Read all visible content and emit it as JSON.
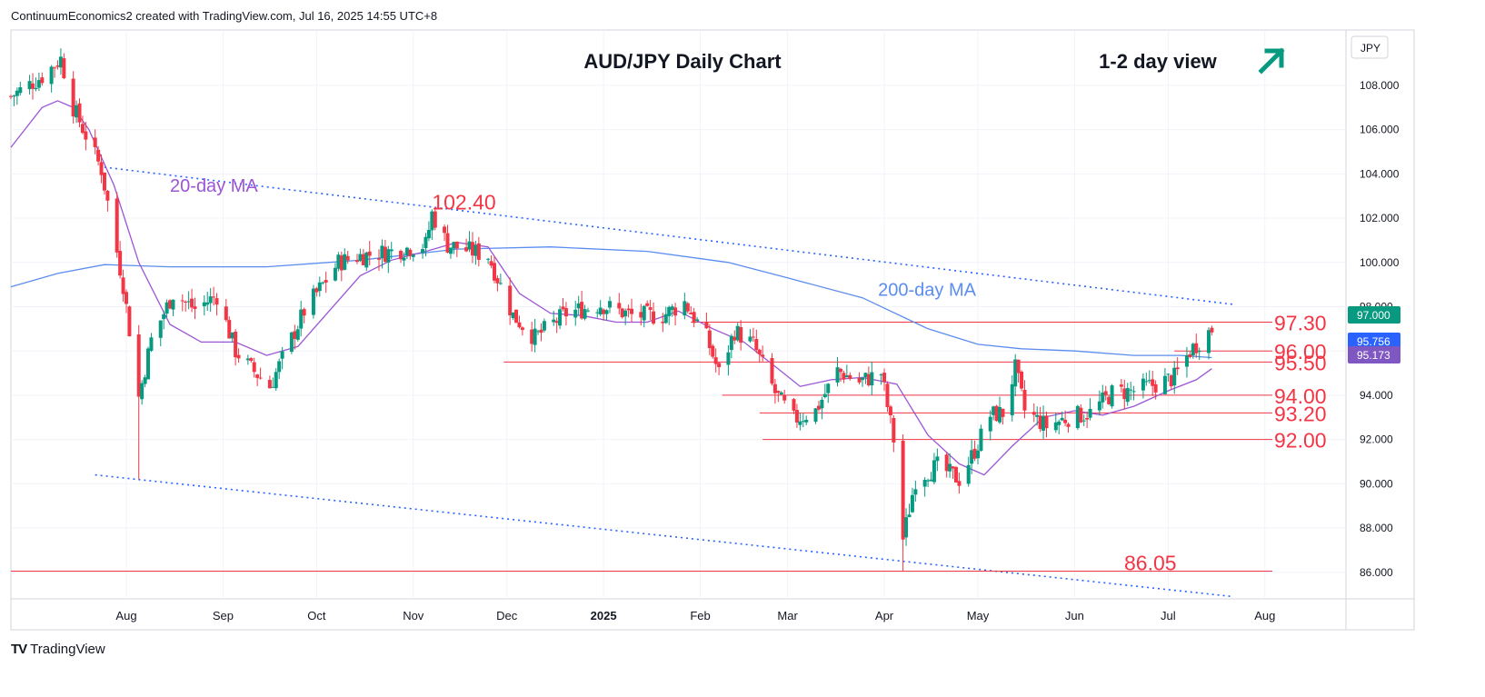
{
  "header": {
    "text": "ContinuumEconomics2 created with TradingView.com, Jul 16, 2025 14:55 UTC+8"
  },
  "footer": {
    "brand": "TradingView",
    "logo": "TV"
  },
  "chart_data": {
    "type": "candlestick",
    "title": "AUD/JPY Daily Chart",
    "view_label": "1-2 day view",
    "view_icon": "arrow-up-right-icon",
    "currency": "JPY",
    "ylim": [
      84.8,
      110.5
    ],
    "y_ticks": [
      "108.000",
      "106.000",
      "104.000",
      "102.000",
      "100.000",
      "98.000",
      "96.000",
      "94.000",
      "92.000",
      "90.000",
      "88.000",
      "86.000"
    ],
    "x_ticks": [
      {
        "label": "Aug",
        "date": "2024-08-01"
      },
      {
        "label": "Sep",
        "date": "2024-09-01"
      },
      {
        "label": "Oct",
        "date": "2024-10-01"
      },
      {
        "label": "Nov",
        "date": "2024-11-01"
      },
      {
        "label": "Dec",
        "date": "2024-12-01"
      },
      {
        "label": "2025",
        "date": "2025-01-01",
        "bold": true
      },
      {
        "label": "Feb",
        "date": "2025-02-01"
      },
      {
        "label": "Mar",
        "date": "2025-03-01"
      },
      {
        "label": "Apr",
        "date": "2025-04-01"
      },
      {
        "label": "May",
        "date": "2025-05-01"
      },
      {
        "label": "Jun",
        "date": "2025-06-01"
      },
      {
        "label": "Jul",
        "date": "2025-07-01"
      },
      {
        "label": "Aug",
        "date": "2025-08-01"
      }
    ],
    "colors": {
      "up": "#089981",
      "down": "#f23645",
      "ma20": "#9c55d4",
      "ma200": "#5b8def",
      "level": "#f23645",
      "trend": "#2962ff",
      "accent": "#089981"
    },
    "price_badges": [
      {
        "value": "97.000",
        "color": "#089981"
      },
      {
        "value": "95.756",
        "color": "#2962ff"
      },
      {
        "value": "95.173",
        "color": "#7e57c2"
      }
    ],
    "levels": [
      {
        "value": 97.3,
        "label": "97.30",
        "from": "2025-01-29"
      },
      {
        "value": 96.0,
        "label": "96.00",
        "from": "2025-07-03"
      },
      {
        "value": 95.5,
        "label": "95.50",
        "from": "2024-11-30"
      },
      {
        "value": 94.0,
        "label": "94.00",
        "from": "2025-02-08"
      },
      {
        "value": 93.2,
        "label": "93.20",
        "from": "2025-02-20"
      },
      {
        "value": 92.0,
        "label": "92.00",
        "from": "2025-02-21"
      },
      {
        "value": 86.05,
        "label": "86.05",
        "from": "2024-06-25"
      }
    ],
    "annotations": [
      {
        "text": "102.40",
        "date": "2024-11-07",
        "value": 102.4,
        "color": "#f23645"
      },
      {
        "text": "20-day MA",
        "date": "2024-08-15",
        "value": 103.2,
        "color": "#9c55d4"
      },
      {
        "text": "200-day MA",
        "date": "2025-03-30",
        "value": 98.5,
        "color": "#5b8def"
      }
    ],
    "trendlines": [
      {
        "name": "upper",
        "points": [
          [
            "2024-07-25",
            104.3
          ],
          [
            "2025-07-22",
            98.1
          ]
        ]
      },
      {
        "name": "lower",
        "points": [
          [
            "2024-07-22",
            90.4
          ],
          [
            "2025-07-22",
            84.9
          ]
        ]
      }
    ],
    "ma20": [
      [
        "2024-06-25",
        105.2
      ],
      [
        "2024-07-05",
        107.0
      ],
      [
        "2024-07-10",
        107.3
      ],
      [
        "2024-07-15",
        107.0
      ],
      [
        "2024-07-20",
        106.0
      ],
      [
        "2024-07-28",
        103.5
      ],
      [
        "2024-08-05",
        100.0
      ],
      [
        "2024-08-15",
        97.2
      ],
      [
        "2024-08-25",
        96.4
      ],
      [
        "2024-09-05",
        96.4
      ],
      [
        "2024-09-15",
        95.8
      ],
      [
        "2024-09-25",
        96.2
      ],
      [
        "2024-10-05",
        97.8
      ],
      [
        "2024-10-15",
        99.4
      ],
      [
        "2024-10-25",
        100.1
      ],
      [
        "2024-11-05",
        100.5
      ],
      [
        "2024-11-15",
        100.9
      ],
      [
        "2024-11-25",
        100.7
      ],
      [
        "2024-12-05",
        98.6
      ],
      [
        "2024-12-15",
        97.7
      ],
      [
        "2024-12-25",
        97.6
      ],
      [
        "2025-01-05",
        97.3
      ],
      [
        "2025-01-15",
        97.3
      ],
      [
        "2025-01-25",
        97.8
      ],
      [
        "2025-02-05",
        97.0
      ],
      [
        "2025-02-15",
        96.4
      ],
      [
        "2025-02-25",
        95.3
      ],
      [
        "2025-03-05",
        94.4
      ],
      [
        "2025-03-15",
        94.7
      ],
      [
        "2025-03-25",
        94.8
      ],
      [
        "2025-04-05",
        94.5
      ],
      [
        "2025-04-15",
        92.2
      ],
      [
        "2025-04-25",
        90.9
      ],
      [
        "2025-05-03",
        90.4
      ],
      [
        "2025-05-12",
        91.7
      ],
      [
        "2025-05-22",
        93.0
      ],
      [
        "2025-06-01",
        93.3
      ],
      [
        "2025-06-10",
        93.1
      ],
      [
        "2025-06-20",
        93.5
      ],
      [
        "2025-07-01",
        94.2
      ],
      [
        "2025-07-10",
        94.7
      ],
      [
        "2025-07-15",
        95.2
      ]
    ],
    "ma200": [
      [
        "2024-06-25",
        98.9
      ],
      [
        "2024-07-10",
        99.5
      ],
      [
        "2024-07-25",
        99.9
      ],
      [
        "2024-08-15",
        99.8
      ],
      [
        "2024-09-15",
        99.8
      ],
      [
        "2024-10-15",
        100.1
      ],
      [
        "2024-11-15",
        100.6
      ],
      [
        "2024-12-15",
        100.7
      ],
      [
        "2025-01-15",
        100.5
      ],
      [
        "2025-02-10",
        100.0
      ],
      [
        "2025-03-01",
        99.3
      ],
      [
        "2025-03-25",
        98.4
      ],
      [
        "2025-04-15",
        97.0
      ],
      [
        "2025-05-01",
        96.3
      ],
      [
        "2025-05-15",
        96.1
      ],
      [
        "2025-06-01",
        96.0
      ],
      [
        "2025-06-20",
        95.8
      ],
      [
        "2025-07-05",
        95.8
      ],
      [
        "2025-07-15",
        95.7
      ]
    ],
    "anchors": [
      [
        "2024-06-25",
        107.5
      ],
      [
        "2024-07-05",
        108.4
      ],
      [
        "2024-07-11",
        109.2
      ],
      [
        "2024-07-15",
        107.0
      ],
      [
        "2024-07-24",
        104.2
      ],
      [
        "2024-07-31",
        99.0
      ],
      [
        "2024-08-05",
        93.9
      ],
      [
        "2024-08-09",
        96.5
      ],
      [
        "2024-08-16",
        98.6
      ],
      [
        "2024-08-23",
        97.9
      ],
      [
        "2024-08-30",
        98.5
      ],
      [
        "2024-09-05",
        96.0
      ],
      [
        "2024-09-10",
        95.2
      ],
      [
        "2024-09-16",
        94.4
      ],
      [
        "2024-09-27",
        97.8
      ],
      [
        "2024-10-08",
        100.0
      ],
      [
        "2024-10-15",
        100.3
      ],
      [
        "2024-10-25",
        100.5
      ],
      [
        "2024-11-05",
        100.8
      ],
      [
        "2024-11-07",
        102.2
      ],
      [
        "2024-11-12",
        100.8
      ],
      [
        "2024-11-25",
        100.3
      ],
      [
        "2024-12-03",
        97.6
      ],
      [
        "2024-12-10",
        96.6
      ],
      [
        "2024-12-20",
        97.7
      ],
      [
        "2024-12-31",
        98.1
      ],
      [
        "2025-01-10",
        97.6
      ],
      [
        "2025-01-20",
        97.6
      ],
      [
        "2025-01-27",
        98.2
      ],
      [
        "2025-02-03",
        96.6
      ],
      [
        "2025-02-07",
        95.0
      ],
      [
        "2025-02-12",
        96.9
      ],
      [
        "2025-02-18",
        96.3
      ],
      [
        "2025-02-25",
        94.1
      ],
      [
        "2025-03-03",
        92.9
      ],
      [
        "2025-03-10",
        93.3
      ],
      [
        "2025-03-17",
        95.1
      ],
      [
        "2025-03-24",
        94.6
      ],
      [
        "2025-03-31",
        95.0
      ],
      [
        "2025-04-04",
        92.0
      ],
      [
        "2025-04-07",
        87.5
      ],
      [
        "2025-04-11",
        90.2
      ],
      [
        "2025-04-18",
        90.8
      ],
      [
        "2025-04-25",
        90.2
      ],
      [
        "2025-04-30",
        91.5
      ],
      [
        "2025-05-05",
        93.1
      ],
      [
        "2025-05-09",
        93.2
      ],
      [
        "2025-05-13",
        95.2
      ],
      [
        "2025-05-16",
        93.3
      ],
      [
        "2025-05-23",
        92.6
      ],
      [
        "2025-05-30",
        93.0
      ],
      [
        "2025-06-06",
        93.2
      ],
      [
        "2025-06-13",
        94.1
      ],
      [
        "2025-06-20",
        94.2
      ],
      [
        "2025-06-27",
        94.5
      ],
      [
        "2025-07-03",
        94.8
      ],
      [
        "2025-07-08",
        96.0
      ],
      [
        "2025-07-15",
        97.0
      ]
    ]
  }
}
